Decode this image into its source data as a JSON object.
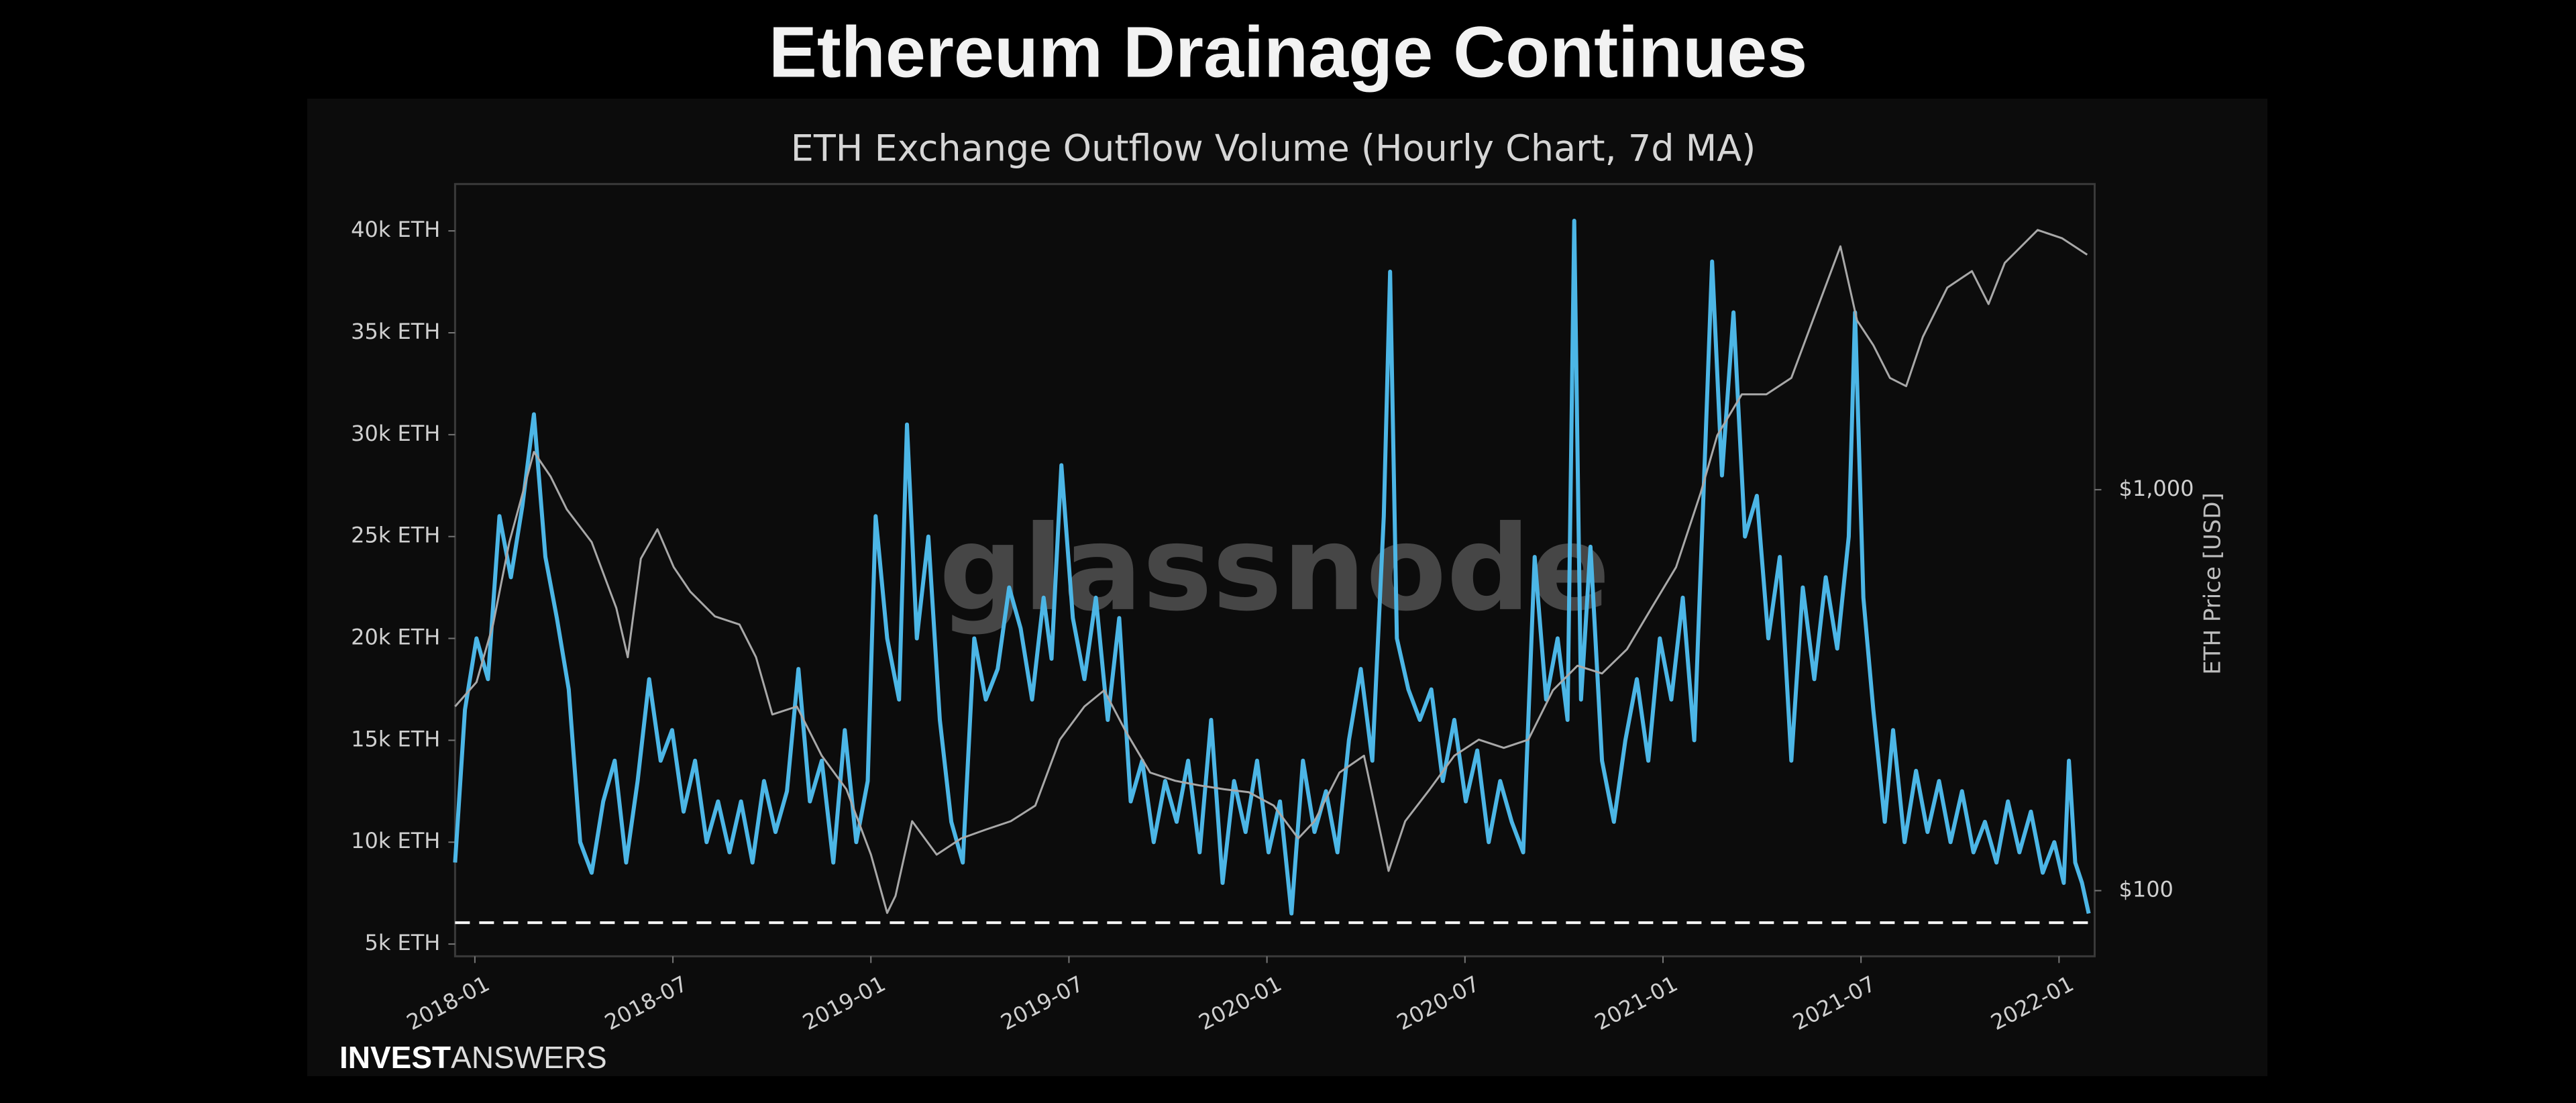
{
  "chart_data": {
    "type": "line",
    "title": "Ethereum Drainage Continues",
    "subtitle": "ETH Exchange Outflow Volume (Hourly Chart, 7d MA)",
    "y2_label": "ETH Price [USD]",
    "watermark": "glassnode",
    "brand": [
      "INVEST",
      "ANSWERS"
    ],
    "xlim": [
      2017.95,
      2022.09
    ],
    "xticks": [
      {
        "value": 2018.0,
        "label": "2018-01"
      },
      {
        "value": 2018.5,
        "label": "2018-07"
      },
      {
        "value": 2019.0,
        "label": "2019-01"
      },
      {
        "value": 2019.5,
        "label": "2019-07"
      },
      {
        "value": 2020.0,
        "label": "2020-01"
      },
      {
        "value": 2020.5,
        "label": "2020-07"
      },
      {
        "value": 2021.0,
        "label": "2021-01"
      },
      {
        "value": 2021.5,
        "label": "2021-07"
      },
      {
        "value": 2022.0,
        "label": "2022-01"
      }
    ],
    "ylim": [
      4400,
      42300
    ],
    "yticks": [
      {
        "value": 5000,
        "label": "5k ETH"
      },
      {
        "value": 10000,
        "label": "10k ETH"
      },
      {
        "value": 15000,
        "label": "15k ETH"
      },
      {
        "value": 20000,
        "label": "20k ETH"
      },
      {
        "value": 25000,
        "label": "25k ETH"
      },
      {
        "value": 30000,
        "label": "30k ETH"
      },
      {
        "value": 35000,
        "label": "35k ETH"
      },
      {
        "value": 40000,
        "label": "40k ETH"
      }
    ],
    "y2lim": [
      68.6,
      5785
    ],
    "y2log": true,
    "y2ticks": [
      {
        "value": 100,
        "label": "$100"
      },
      {
        "value": 1000,
        "label": "$1,000"
      }
    ],
    "reference_line": 6050,
    "series": [
      {
        "name": "ETH Exchange Outflow Volume",
        "color": "#4cb6e6",
        "x": [
          2017.95,
          2017.975,
          2018.004,
          2018.033,
          2018.062,
          2018.091,
          2018.12,
          2018.149,
          2018.178,
          2018.207,
          2018.237,
          2018.266,
          2018.295,
          2018.324,
          2018.353,
          2018.382,
          2018.411,
          2018.44,
          2018.469,
          2018.498,
          2018.527,
          2018.556,
          2018.585,
          2018.614,
          2018.643,
          2018.672,
          2018.701,
          2018.73,
          2018.759,
          2018.788,
          2018.817,
          2018.846,
          2018.876,
          2018.905,
          2018.934,
          2018.963,
          2018.992,
          2019.012,
          2019.041,
          2019.071,
          2019.091,
          2019.116,
          2019.145,
          2019.174,
          2019.203,
          2019.232,
          2019.261,
          2019.29,
          2019.32,
          2019.349,
          2019.378,
          2019.407,
          2019.436,
          2019.456,
          2019.481,
          2019.51,
          2019.539,
          2019.568,
          2019.598,
          2019.627,
          2019.656,
          2019.685,
          2019.714,
          2019.743,
          2019.772,
          2019.801,
          2019.83,
          2019.859,
          2019.888,
          2019.917,
          2019.946,
          2019.975,
          2020.004,
          2020.033,
          2020.062,
          2020.091,
          2020.12,
          2020.149,
          2020.178,
          2020.207,
          2020.237,
          2020.266,
          2020.295,
          2020.311,
          2020.328,
          2020.357,
          2020.386,
          2020.415,
          2020.444,
          2020.473,
          2020.502,
          2020.531,
          2020.56,
          2020.589,
          2020.618,
          2020.647,
          2020.676,
          2020.705,
          2020.734,
          2020.759,
          2020.776,
          2020.793,
          2020.817,
          2020.846,
          2020.876,
          2020.905,
          2020.934,
          2020.963,
          2020.992,
          2021.021,
          2021.05,
          2021.079,
          2021.108,
          2021.124,
          2021.149,
          2021.178,
          2021.207,
          2021.237,
          2021.266,
          2021.295,
          2021.324,
          2021.353,
          2021.382,
          2021.411,
          2021.44,
          2021.469,
          2021.485,
          2021.506,
          2021.531,
          2021.56,
          2021.581,
          2021.61,
          2021.639,
          2021.668,
          2021.697,
          2021.726,
          2021.755,
          2021.784,
          2021.813,
          2021.842,
          2021.871,
          2021.9,
          2021.929,
          2021.959,
          2021.988,
          2022.012,
          2022.025,
          2022.041,
          2022.058,
          2022.075
        ],
        "values": [
          9000,
          16500,
          20000,
          18000,
          26000,
          23000,
          26500,
          31000,
          24000,
          21000,
          17500,
          10000,
          8500,
          12000,
          14000,
          9000,
          13000,
          18000,
          14000,
          15500,
          11500,
          14000,
          10000,
          12000,
          9500,
          12000,
          9000,
          13000,
          10500,
          12500,
          18500,
          12000,
          14000,
          9000,
          15500,
          10000,
          13000,
          26000,
          20000,
          17000,
          30500,
          20000,
          25000,
          16000,
          11000,
          9000,
          20000,
          17000,
          18500,
          22500,
          20500,
          17000,
          22000,
          19000,
          28500,
          21000,
          18000,
          22000,
          16000,
          21000,
          12000,
          14000,
          10000,
          13000,
          11000,
          14000,
          9500,
          16000,
          8000,
          13000,
          10500,
          14000,
          9500,
          12000,
          6500,
          14000,
          10500,
          12500,
          9500,
          15000,
          18500,
          14000,
          26000,
          38000,
          20000,
          17500,
          16000,
          17500,
          13000,
          16000,
          12000,
          14500,
          10000,
          13000,
          11000,
          9500,
          24000,
          17000,
          20000,
          16000,
          40500,
          17000,
          24500,
          14000,
          11000,
          15000,
          18000,
          14000,
          20000,
          17000,
          22000,
          15000,
          30000,
          38500,
          28000,
          36000,
          25000,
          27000,
          20000,
          24000,
          14000,
          22500,
          18000,
          23000,
          19500,
          25000,
          36000,
          22000,
          16500,
          11000,
          15500,
          10000,
          13500,
          10500,
          13000,
          10000,
          12500,
          9500,
          11000,
          9000,
          12000,
          9500,
          11500,
          8500,
          10000,
          8000,
          14000,
          9000,
          8000,
          6500
        ]
      },
      {
        "name": "ETH Price",
        "color": "#a8a8a8",
        "axis": "y2",
        "x": [
          2017.95,
          2018.004,
          2018.046,
          2018.087,
          2018.149,
          2018.191,
          2018.232,
          2018.295,
          2018.357,
          2018.386,
          2018.419,
          2018.461,
          2018.502,
          2018.544,
          2018.606,
          2018.668,
          2018.71,
          2018.751,
          2018.813,
          2018.876,
          2018.938,
          2019.0,
          2019.041,
          2019.062,
          2019.104,
          2019.166,
          2019.228,
          2019.29,
          2019.353,
          2019.415,
          2019.477,
          2019.539,
          2019.589,
          2019.643,
          2019.705,
          2019.768,
          2019.83,
          2019.892,
          2019.954,
          2020.017,
          2020.079,
          2020.12,
          2020.183,
          2020.245,
          2020.307,
          2020.349,
          2020.411,
          2020.473,
          2020.535,
          2020.598,
          2020.66,
          2020.722,
          2020.784,
          2020.846,
          2020.909,
          2020.971,
          2021.033,
          2021.095,
          2021.137,
          2021.199,
          2021.261,
          2021.324,
          2021.386,
          2021.448,
          2021.49,
          2021.531,
          2021.573,
          2021.614,
          2021.656,
          2021.718,
          2021.78,
          2021.822,
          2021.863,
          2021.946,
          2022.008,
          2022.071
        ],
        "values": [
          288,
          331,
          461,
          740,
          1242,
          1079,
          893,
          740,
          507,
          382,
          673,
          797,
          641,
          557,
          483,
          461,
          382,
          275,
          288,
          217,
          179,
          123,
          88,
          97,
          149,
          123,
          135,
          142,
          149,
          163,
          238,
          288,
          316,
          250,
          197,
          188,
          183,
          179,
          176,
          163,
          135,
          149,
          197,
          217,
          112,
          149,
          179,
          217,
          238,
          227,
          238,
          316,
          364,
          348,
          400,
          507,
          641,
          981,
          1366,
          1729,
          1729,
          1900,
          2772,
          4044,
          2642,
          2294,
          1900,
          1812,
          2404,
          3192,
          3508,
          2904,
          3679,
          4443,
          4236,
          3855
        ]
      }
    ]
  }
}
